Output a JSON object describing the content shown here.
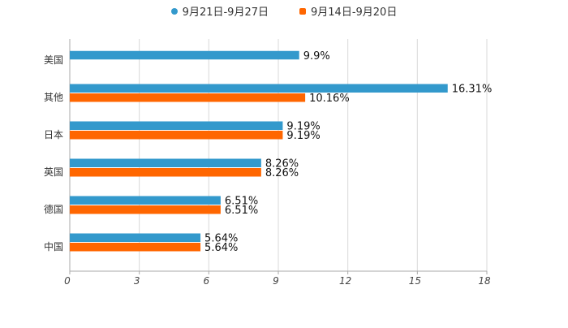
{
  "chart_data": {
    "type": "bar",
    "orientation": "horizontal",
    "categories": [
      "美国",
      "其他",
      "日本",
      "英国",
      "德国",
      "中国"
    ],
    "series": [
      {
        "name": "9月21日-9月27日",
        "color": "#3399cc",
        "values": [
          9.9,
          16.31,
          9.19,
          8.26,
          6.51,
          5.64
        ],
        "labels": [
          "9.9%",
          "16.31%",
          "9.19%",
          "8.26%",
          "6.51%",
          "5.64%"
        ]
      },
      {
        "name": "9月14日-9月20日",
        "color": "#ff6600",
        "values": [
          null,
          10.16,
          9.19,
          8.26,
          6.51,
          5.64
        ],
        "labels": [
          "",
          "10.16%",
          "9.19%",
          "8.26%",
          "6.51%",
          "5.64%"
        ]
      }
    ],
    "xlim": [
      0,
      18
    ],
    "xticks": [
      "0",
      "3",
      "6",
      "9",
      "12",
      "15",
      "18"
    ],
    "grid": true,
    "legend_position": "top-center"
  }
}
